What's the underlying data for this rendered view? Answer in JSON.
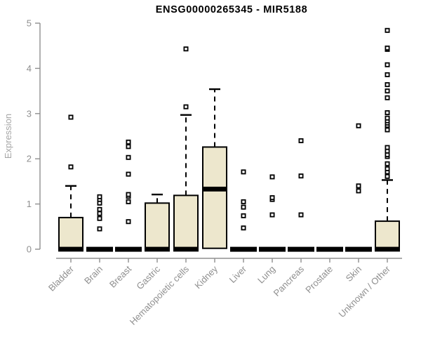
{
  "title": "ENSG00000265345 - MIR5188",
  "chart_data": {
    "type": "boxplot",
    "title": "ENSG00000265345 - MIR5188",
    "xlabel": "",
    "ylabel": "Expression",
    "ylim": [
      0,
      5
    ],
    "yticks": [
      0,
      1,
      2,
      3,
      4,
      5
    ],
    "grid": false,
    "legend": "none",
    "categories": [
      "Bladder",
      "Brain",
      "Breast",
      "Gastric",
      "Hematopoietic cells",
      "Kidney",
      "Liver",
      "Lung",
      "Pancreas",
      "Prostate",
      "Skin",
      "Unknown / Other"
    ],
    "boxes": [
      {
        "category": "Bladder",
        "q1": 0,
        "median": 0,
        "q3": 0.7,
        "whisker_low": 0,
        "whisker_high": 1.4,
        "outliers": [
          1.82,
          2.92
        ]
      },
      {
        "category": "Brain",
        "q1": 0,
        "median": 0,
        "q3": 0,
        "whisker_low": 0,
        "whisker_high": 0,
        "outliers": [
          0.45,
          0.68,
          0.79,
          0.88,
          1.02,
          1.1,
          1.16
        ]
      },
      {
        "category": "Breast",
        "q1": 0,
        "median": 0,
        "q3": 0,
        "whisker_low": 0,
        "whisker_high": 0,
        "outliers": [
          0.61,
          1.05,
          1.17,
          1.21,
          1.66,
          2.03,
          2.27,
          2.37
        ]
      },
      {
        "category": "Gastric",
        "q1": 0,
        "median": 0,
        "q3": 1.02,
        "whisker_low": 0,
        "whisker_high": 1.21,
        "outliers": []
      },
      {
        "category": "Hematopoietic cells",
        "q1": 0,
        "median": 0,
        "q3": 1.19,
        "whisker_low": 0,
        "whisker_high": 2.97,
        "outliers": [
          3.15,
          4.43
        ]
      },
      {
        "category": "Kidney",
        "q1": 0.02,
        "median": 1.33,
        "q3": 2.26,
        "whisker_low": 0.02,
        "whisker_high": 3.54,
        "outliers": []
      },
      {
        "category": "Liver",
        "q1": 0,
        "median": 0,
        "q3": 0,
        "whisker_low": 0,
        "whisker_high": 0,
        "outliers": [
          0.47,
          0.74,
          0.93,
          1.05,
          1.71
        ]
      },
      {
        "category": "Lung",
        "q1": 0,
        "median": 0,
        "q3": 0,
        "whisker_low": 0,
        "whisker_high": 0,
        "outliers": [
          0.76,
          1.1,
          1.14,
          1.6
        ]
      },
      {
        "category": "Pancreas",
        "q1": 0,
        "median": 0,
        "q3": 0,
        "whisker_low": 0,
        "whisker_high": 0,
        "outliers": [
          0.76,
          1.62,
          2.4
        ]
      },
      {
        "category": "Prostate",
        "q1": 0,
        "median": 0,
        "q3": 0,
        "whisker_low": 0,
        "whisker_high": 0,
        "outliers": []
      },
      {
        "category": "Skin",
        "q1": 0,
        "median": 0,
        "q3": 0,
        "whisker_low": 0,
        "whisker_high": 0,
        "outliers": [
          1.29,
          1.4,
          2.73
        ]
      },
      {
        "category": "Unknown / Other",
        "q1": 0,
        "median": 0,
        "q3": 0.62,
        "whisker_low": 0,
        "whisker_high": 1.53,
        "outliers": [
          1.61,
          1.71,
          1.78,
          1.89,
          2.05,
          2.09,
          2.17,
          2.25,
          2.64,
          2.74,
          2.79,
          2.84,
          2.9,
          3.02,
          3.35,
          3.5,
          3.64,
          3.86,
          4.08,
          4.42,
          4.45,
          4.84
        ]
      }
    ],
    "colors": {
      "box_fill": "#EDE7CD",
      "box_stroke": "#000000",
      "median_color": "#000000",
      "outlier_stroke": "#000000",
      "axis_color": "#8F8F8F",
      "tick_label_color": "#8F8F8F",
      "ylabel_color": "#A6A6A6",
      "title_color": "#000000",
      "background": "#FFFFFF"
    }
  }
}
